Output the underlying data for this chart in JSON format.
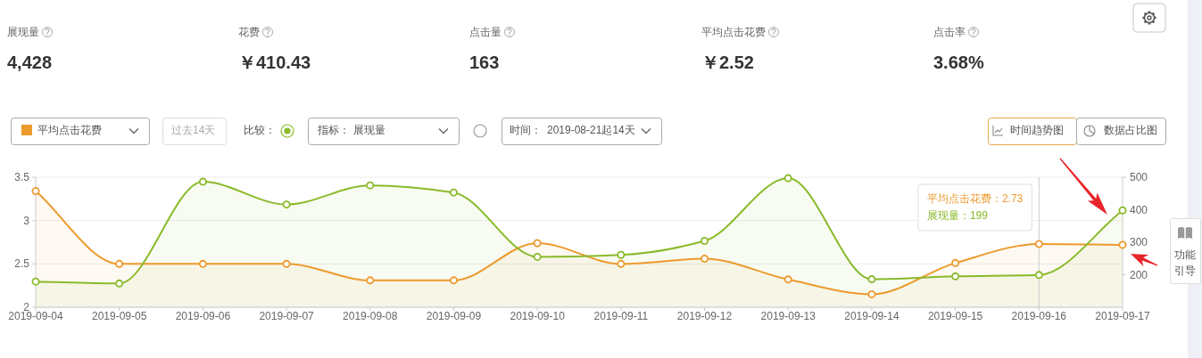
{
  "chart_data": [
    {
      "type": "other",
      "annotations": [
        "展现量",
        "4,428",
        "花费",
        "￥410.43",
        "点击量",
        "163",
        "平均点击花费",
        "￥2.52",
        "点击率",
        "3.68%"
      ]
    },
    {
      "type": "other",
      "annotations": [
        "过去14天",
        "比较：",
        "指标：",
        "时间：",
        "2019-08-21起14天",
        "时间趋势图",
        "数据占比图",
        "功能",
        "引导"
      ]
    },
    {
      "type": "area",
      "categories": [
        "2019-09-04",
        "2019-09-05",
        "2019-09-06",
        "2019-09-07",
        "2019-09-08",
        "2019-09-09",
        "2019-09-10",
        "2019-09-11",
        "2019-09-12",
        "2019-09-13",
        "2019-09-14",
        "2019-09-15",
        "2019-09-16",
        "2019-09-17"
      ],
      "series": [
        {
          "name": "平均点击花费",
          "color": "#ec9a2c",
          "values": [
            3.34,
            2.5,
            2.5,
            2.5,
            2.31,
            2.31,
            2.74,
            2.5,
            2.56,
            2.32,
            2.15,
            2.51,
            2.73,
            2.72
          ]
        },
        {
          "name": "展现量",
          "color": "#8aba2a",
          "axis": "y2",
          "values": [
            179,
            173,
            486,
            416,
            475,
            453,
            255,
            261,
            304,
            497,
            186,
            195,
            199,
            398
          ]
        }
      ],
      "ylim": [
        2,
        3.5
      ],
      "yticks": [
        2,
        2.5,
        3,
        3.5
      ],
      "y2lim": [
        100,
        500
      ],
      "y2ticks": [
        200,
        300,
        400,
        500
      ],
      "grid": "y",
      "marker": "circle",
      "ref_lines": [
        {
          "axis": "x",
          "value": "2019-09-16"
        }
      ],
      "annotations": [
        "平均点击花费：2.73",
        "展现量：199"
      ]
    }
  ]
}
